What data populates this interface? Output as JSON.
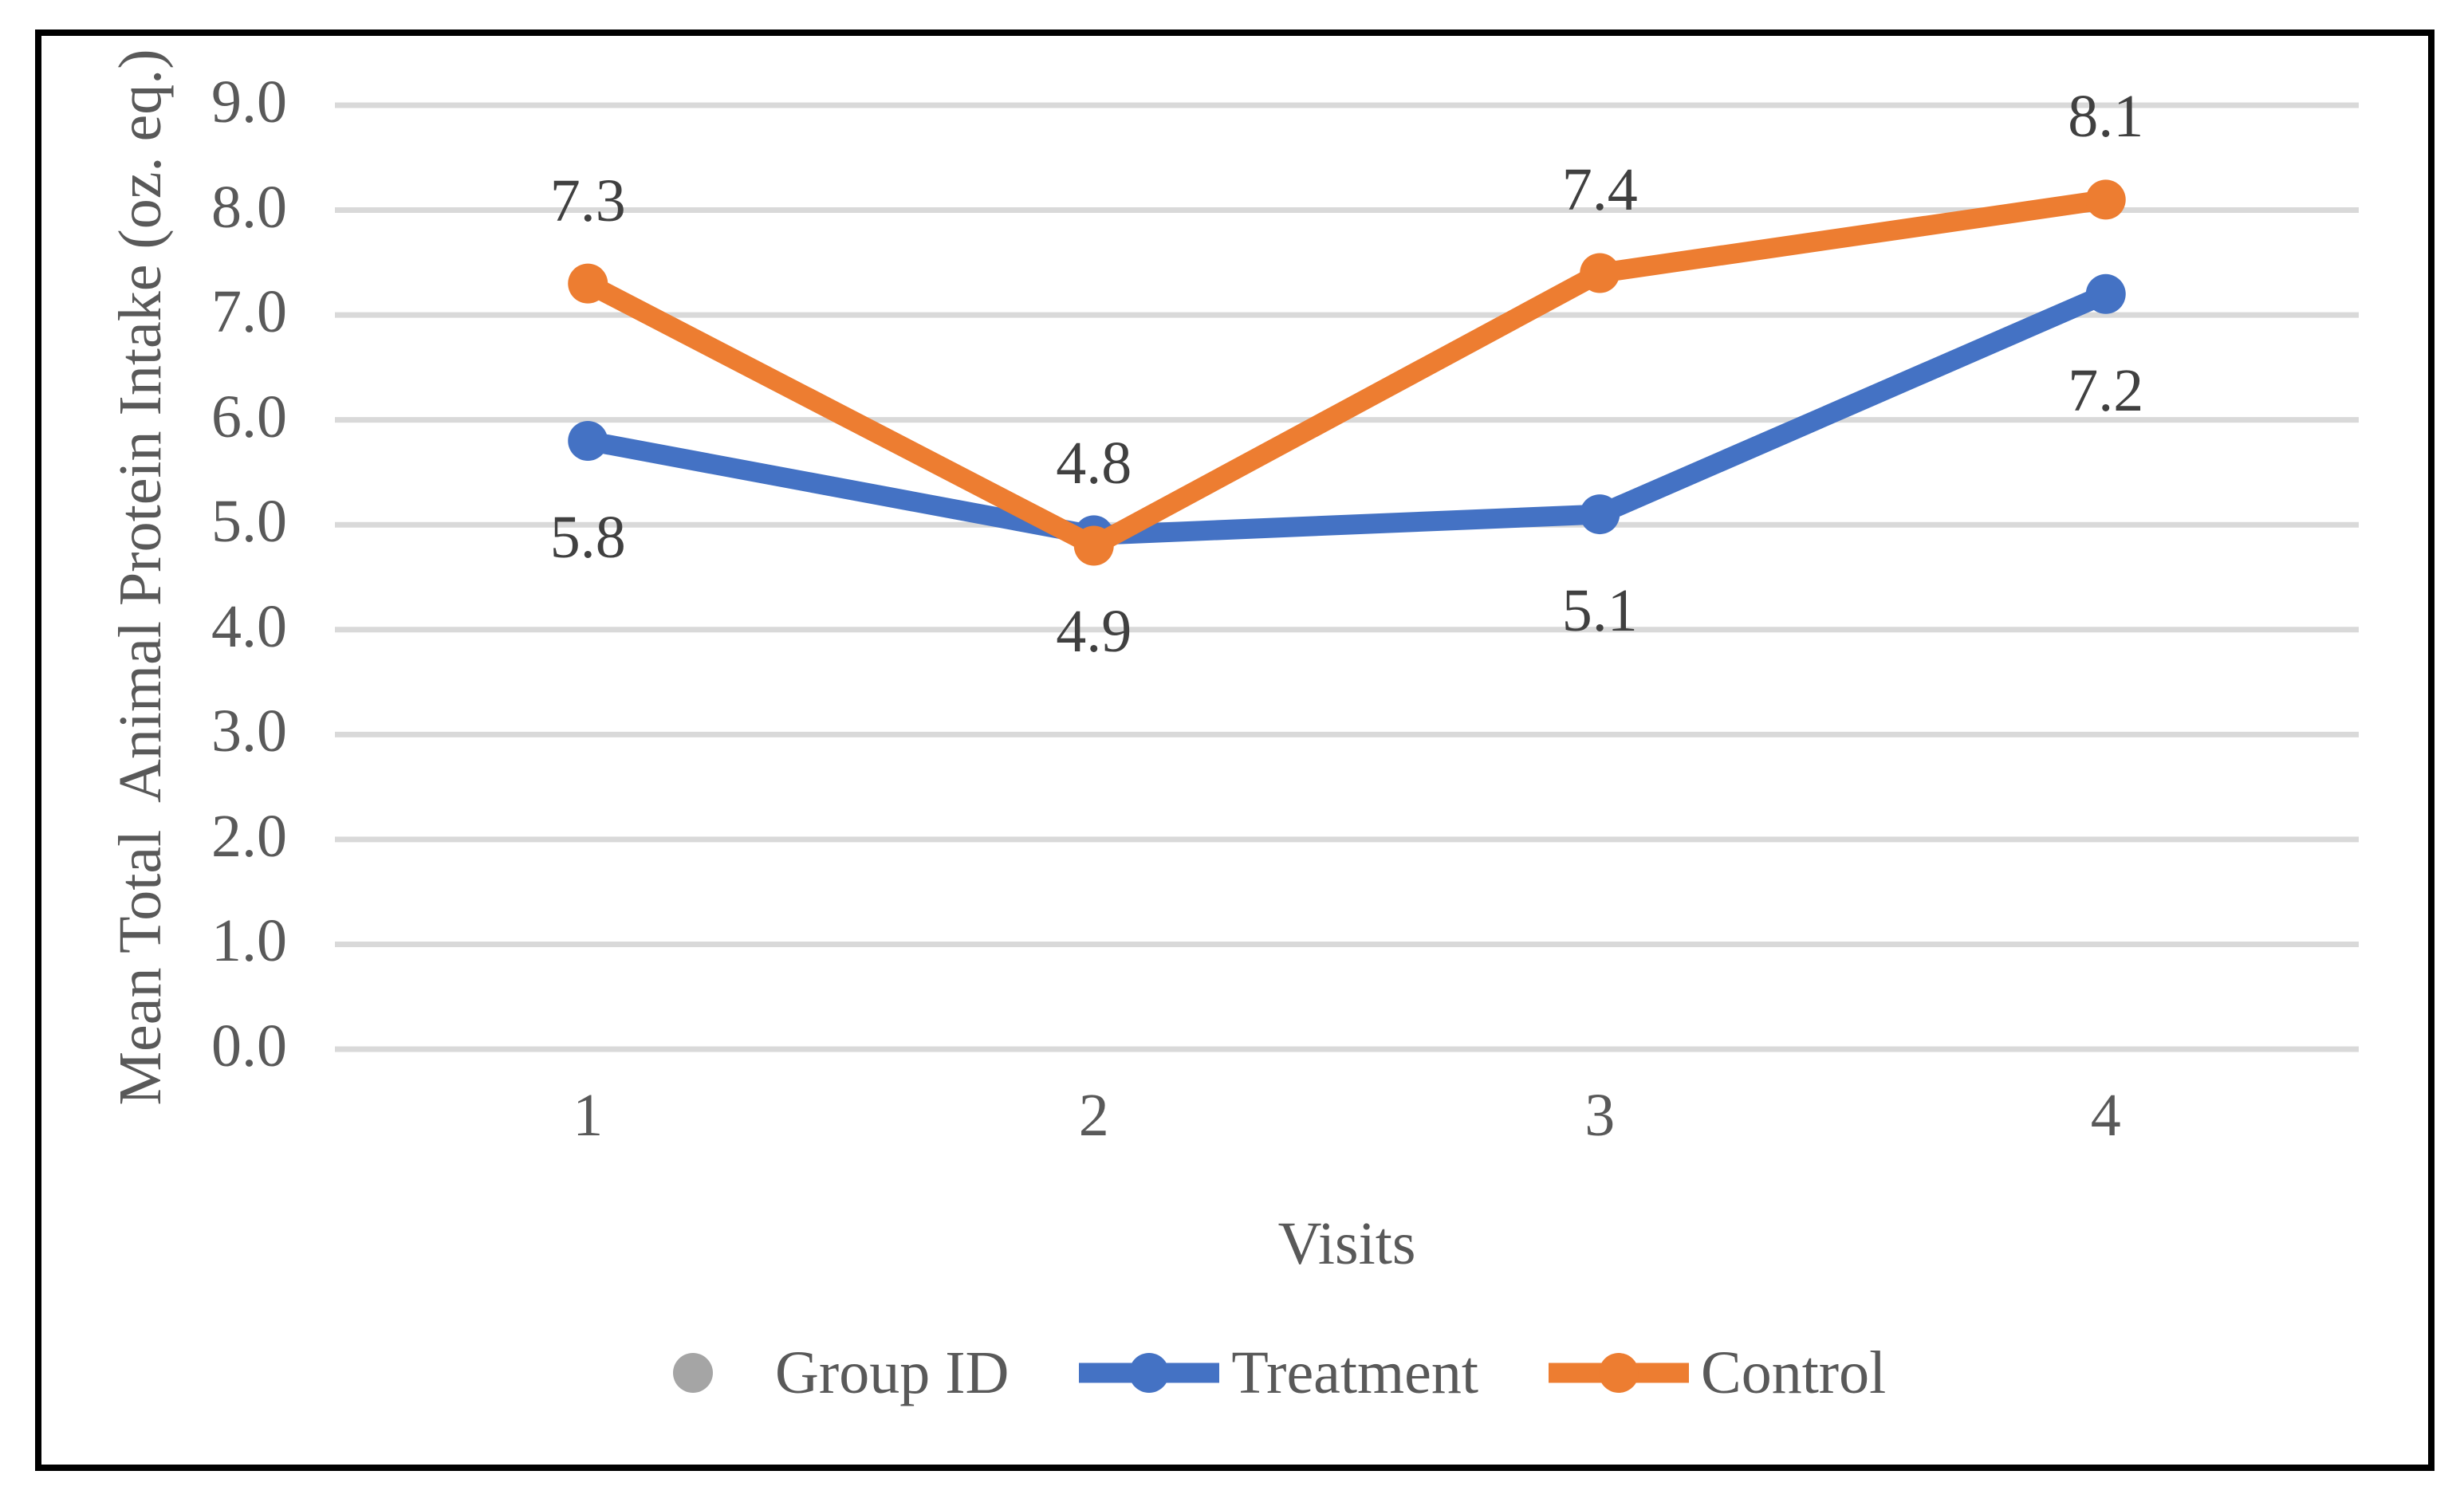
{
  "chart_data": {
    "type": "line",
    "title": "",
    "categories": [
      "1",
      "2",
      "3",
      "4"
    ],
    "series": [
      {
        "name": "Group ID",
        "color": "#A5A5A5",
        "marker": "circle",
        "values": []
      },
      {
        "name": "Treatment",
        "color": "#4472C4",
        "marker": "circle",
        "values": [
          5.8,
          4.9,
          5.1,
          7.2
        ],
        "data_labels": [
          "5.8",
          "4.9",
          "5.1",
          "7.2"
        ],
        "label_position": "below"
      },
      {
        "name": "Control",
        "color": "#ED7D31",
        "marker": "circle",
        "values": [
          7.3,
          4.8,
          7.4,
          8.1
        ],
        "data_labels": [
          "7.3",
          "4.8",
          "7.4",
          "8.1"
        ],
        "label_position": "above"
      }
    ],
    "xlabel": "Visits",
    "ylabel": "Mean Total  Animal Protein Intake (oz. eq.)",
    "ylim": [
      0.0,
      9.0
    ],
    "ytick_step": 1.0,
    "yticks": [
      "9.0",
      "8.0",
      "7.0",
      "6.0",
      "5.0",
      "4.0",
      "3.0",
      "2.0",
      "1.0",
      "0.0"
    ],
    "grid": "horizontal",
    "legend_position": "bottom",
    "legend": [
      "Group ID",
      "Treatment",
      "Control"
    ]
  },
  "colors": {
    "treatment": "#4472C4",
    "control": "#ED7D31",
    "group_id": "#A5A5A5",
    "gridline": "#D9D9D9",
    "axis_text": "#595959",
    "data_label_text": "#404040",
    "frame_border": "#000000",
    "background": "#FFFFFF"
  }
}
